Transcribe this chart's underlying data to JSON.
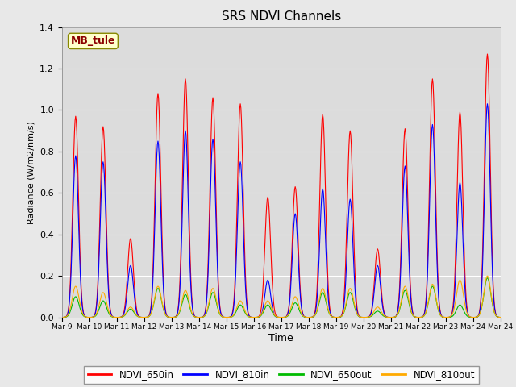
{
  "title": "SRS NDVI Channels",
  "xlabel": "Time",
  "ylabel": "Radiance (W/m2/nm/s)",
  "annotation": "MB_tule",
  "ylim": [
    0.0,
    1.4
  ],
  "fig_facecolor": "#e8e8e8",
  "plot_bg_color": "#dcdcdc",
  "series_colors": {
    "NDVI_650in": "#ff0000",
    "NDVI_810in": "#0000ff",
    "NDVI_650out": "#00bb00",
    "NDVI_810out": "#ffaa00"
  },
  "x_tick_labels": [
    "Mar 9",
    "Mar 10",
    "Mar 11",
    "Mar 12",
    "Mar 13",
    "Mar 14",
    "Mar 15",
    "Mar 16",
    "Mar 17",
    "Mar 18",
    "Mar 19",
    "Mar 20",
    "Mar 21",
    "Mar 22",
    "Mar 23",
    "Mar 24"
  ],
  "day_peaks": {
    "NDVI_650in": [
      0.97,
      0.92,
      0.38,
      1.08,
      1.15,
      1.06,
      1.03,
      0.58,
      0.63,
      0.98,
      0.9,
      0.33,
      0.91,
      1.15,
      0.99,
      1.27
    ],
    "NDVI_810in": [
      0.78,
      0.75,
      0.25,
      0.85,
      0.9,
      0.86,
      0.75,
      0.18,
      0.5,
      0.62,
      0.57,
      0.25,
      0.73,
      0.93,
      0.65,
      1.03
    ],
    "NDVI_650out": [
      0.1,
      0.08,
      0.04,
      0.14,
      0.11,
      0.12,
      0.06,
      0.06,
      0.07,
      0.12,
      0.12,
      0.03,
      0.13,
      0.15,
      0.06,
      0.19
    ],
    "NDVI_810out": [
      0.15,
      0.12,
      0.05,
      0.15,
      0.13,
      0.14,
      0.08,
      0.08,
      0.1,
      0.14,
      0.14,
      0.05,
      0.15,
      0.16,
      0.18,
      0.2
    ]
  },
  "figsize": [
    6.4,
    4.8
  ],
  "dpi": 100
}
